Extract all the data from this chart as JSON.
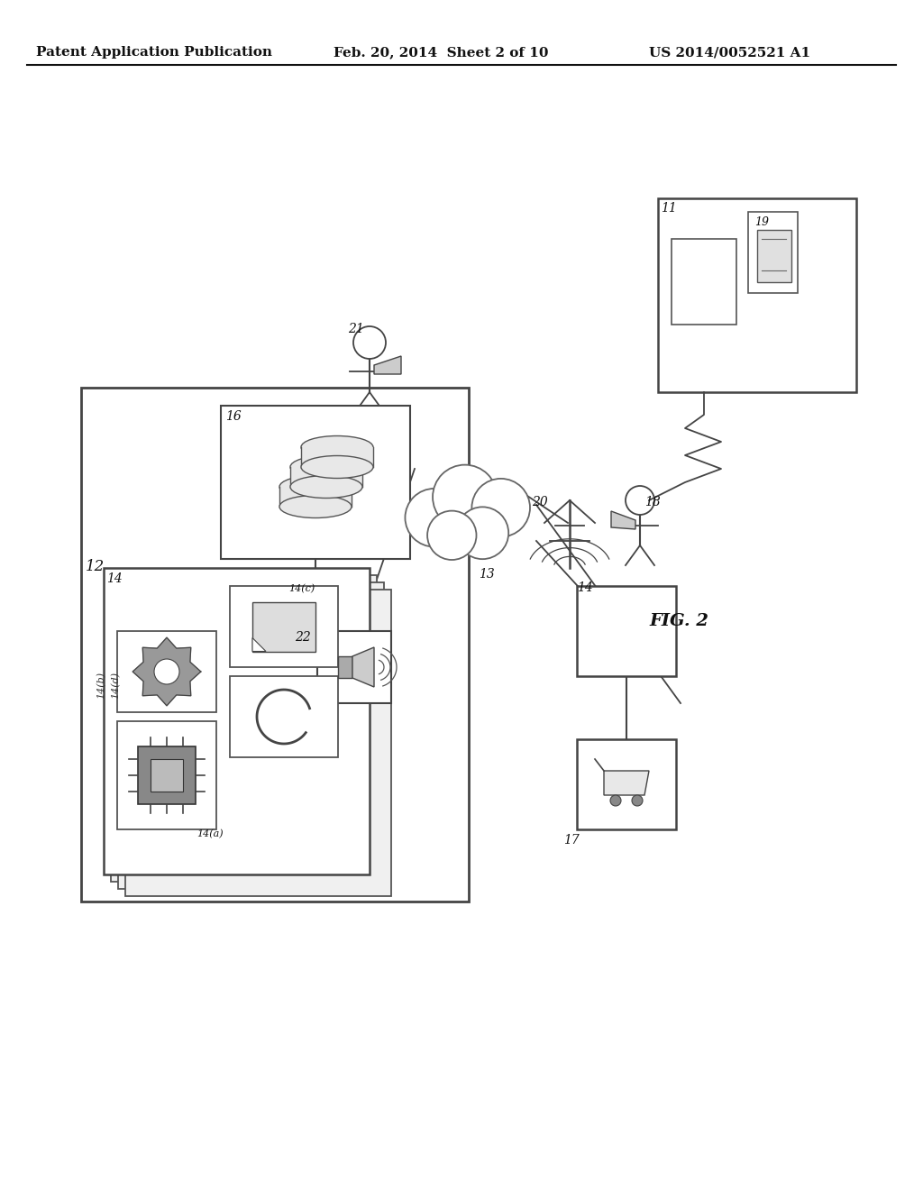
{
  "bg_color": "#ffffff",
  "header_text1": "Patent Application Publication",
  "header_text2": "Feb. 20, 2014  Sheet 2 of 10",
  "header_text3": "US 2014/0052521 A1",
  "fig_label": "FIG. 2",
  "line_color": "#444444",
  "box_color": "#333333"
}
